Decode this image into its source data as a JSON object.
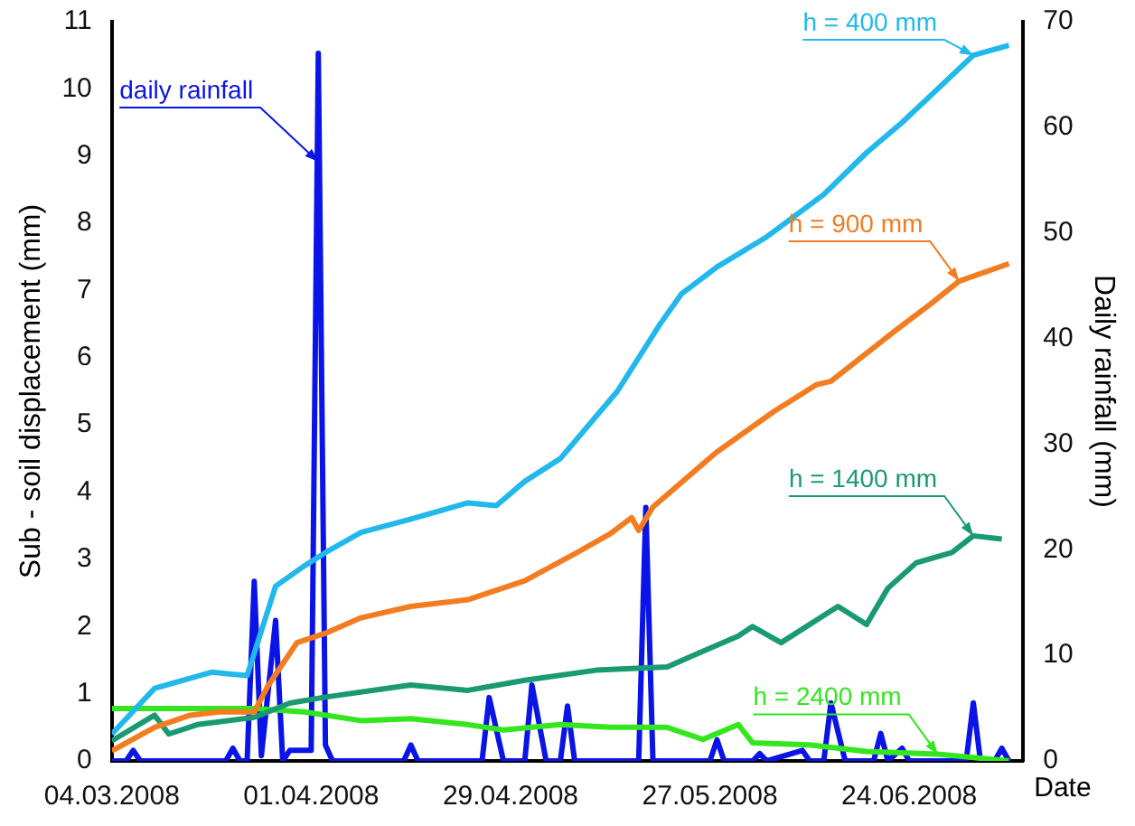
{
  "chart_data": {
    "type": "line",
    "xlabel": "Date",
    "ylabel": "Sub - soil displacement (mm)",
    "y2label": "Daily rainfall (mm)",
    "xlim": [
      "2008-03-04",
      "2008-07-10"
    ],
    "xticks": [
      {
        "value": "2008-03-04",
        "label": "04.03.2008"
      },
      {
        "value": "2008-04-01",
        "label": "01.04.2008"
      },
      {
        "value": "2008-04-29",
        "label": "29.04.2008"
      },
      {
        "value": "2008-05-27",
        "label": "27.05.2008"
      },
      {
        "value": "2008-06-24",
        "label": "24.06.2008"
      }
    ],
    "ylim": [
      0,
      11
    ],
    "yticks": [
      0,
      1,
      2,
      3,
      4,
      5,
      6,
      7,
      8,
      9,
      10,
      11
    ],
    "y2lim": [
      0,
      70
    ],
    "y2ticks": [
      0,
      10,
      20,
      30,
      40,
      50,
      60,
      70
    ],
    "grid": false,
    "legend": false,
    "marker": "none",
    "line_style": "solid",
    "series": [
      {
        "name": "h = 400 mm",
        "color": "#22b8ec",
        "x": [
          "2008-03-04",
          "2008-03-10",
          "2008-03-18",
          "2008-03-23",
          "2008-03-27",
          "2008-03-31",
          "2008-04-03",
          "2008-04-08",
          "2008-04-15",
          "2008-04-23",
          "2008-04-27",
          "2008-05-01",
          "2008-05-06",
          "2008-05-14",
          "2008-05-20",
          "2008-05-23",
          "2008-05-28",
          "2008-06-04",
          "2008-06-12",
          "2008-06-18",
          "2008-06-23",
          "2008-06-28",
          "2008-07-03",
          "2008-07-08"
        ],
        "values": [
          0.4,
          1.08,
          1.32,
          1.27,
          2.6,
          2.9,
          3.1,
          3.4,
          3.6,
          3.84,
          3.8,
          4.16,
          4.5,
          5.5,
          6.5,
          6.95,
          7.35,
          7.8,
          8.43,
          9.05,
          9.5,
          10.0,
          10.5,
          10.65
        ]
      },
      {
        "name": "h = 900 mm",
        "color": "#f47c20",
        "x": [
          "2008-03-04",
          "2008-03-10",
          "2008-03-15",
          "2008-03-19",
          "2008-03-24",
          "2008-03-26",
          "2008-03-30",
          "2008-04-03",
          "2008-04-08",
          "2008-04-15",
          "2008-04-23",
          "2008-05-01",
          "2008-05-08",
          "2008-05-13",
          "2008-05-16",
          "2008-05-17",
          "2008-05-19",
          "2008-05-28",
          "2008-06-05",
          "2008-06-11",
          "2008-06-13",
          "2008-06-22",
          "2008-06-27",
          "2008-07-01",
          "2008-07-08"
        ],
        "values": [
          0.15,
          0.5,
          0.68,
          0.73,
          0.73,
          1.13,
          1.76,
          1.9,
          2.13,
          2.3,
          2.4,
          2.68,
          3.08,
          3.38,
          3.62,
          3.43,
          3.78,
          4.6,
          5.2,
          5.6,
          5.65,
          6.4,
          6.8,
          7.14,
          7.4
        ]
      },
      {
        "name": "h = 1400 mm",
        "color": "#1a9a72",
        "x": [
          "2008-03-04",
          "2008-03-10",
          "2008-03-12",
          "2008-03-16",
          "2008-03-24",
          "2008-03-29",
          "2008-04-03",
          "2008-04-15",
          "2008-04-23",
          "2008-05-01",
          "2008-05-11",
          "2008-05-21",
          "2008-05-31",
          "2008-06-02",
          "2008-06-06",
          "2008-06-14",
          "2008-06-18",
          "2008-06-21",
          "2008-06-25",
          "2008-06-30",
          "2008-07-03",
          "2008-07-07"
        ],
        "values": [
          0.3,
          0.68,
          0.4,
          0.54,
          0.65,
          0.86,
          0.95,
          1.13,
          1.05,
          1.2,
          1.35,
          1.4,
          1.86,
          2.0,
          1.76,
          2.3,
          2.03,
          2.57,
          2.95,
          3.1,
          3.35,
          3.3
        ]
      },
      {
        "name": "h = 2400 mm",
        "color": "#33e61e",
        "x": [
          "2008-03-04",
          "2008-03-24",
          "2008-03-31",
          "2008-04-08",
          "2008-04-15",
          "2008-04-23",
          "2008-04-28",
          "2008-05-06",
          "2008-05-13",
          "2008-05-21",
          "2008-05-26",
          "2008-05-31",
          "2008-06-02",
          "2008-06-10",
          "2008-06-18",
          "2008-06-28",
          "2008-07-08"
        ],
        "values": [
          0.78,
          0.78,
          0.73,
          0.6,
          0.63,
          0.54,
          0.46,
          0.54,
          0.5,
          0.5,
          0.32,
          0.54,
          0.27,
          0.24,
          0.14,
          0.1,
          0
        ]
      },
      {
        "name": "daily rainfall",
        "color": "#0a14e6",
        "axis": "y2",
        "x": [
          "2008-03-04",
          "2008-03-06",
          "2008-03-07",
          "2008-03-08",
          "2008-03-20",
          "2008-03-21",
          "2008-03-22",
          "2008-03-23",
          "2008-03-24",
          "2008-03-25",
          "2008-03-27",
          "2008-03-28",
          "2008-03-29",
          "2008-03-31",
          "2008-04-01",
          "2008-04-02",
          "2008-04-03",
          "2008-04-04",
          "2008-04-14",
          "2008-04-15",
          "2008-04-16",
          "2008-04-25",
          "2008-04-26",
          "2008-04-28",
          "2008-05-01",
          "2008-05-02",
          "2008-05-04",
          "2008-05-06",
          "2008-05-07",
          "2008-05-08",
          "2008-05-17",
          "2008-05-18",
          "2008-05-19",
          "2008-05-27",
          "2008-05-28",
          "2008-05-29",
          "2008-06-02",
          "2008-06-03",
          "2008-06-04",
          "2008-06-09",
          "2008-06-10",
          "2008-06-12",
          "2008-06-13",
          "2008-06-15",
          "2008-06-19",
          "2008-06-20",
          "2008-06-21",
          "2008-06-23",
          "2008-06-24",
          "2008-07-02",
          "2008-07-03",
          "2008-07-04",
          "2008-07-06",
          "2008-07-07",
          "2008-07-08"
        ],
        "values": [
          0,
          0,
          1,
          0,
          0,
          1.2,
          0,
          0,
          17,
          0.5,
          13.3,
          0,
          1,
          1,
          1,
          67,
          1.5,
          0,
          0,
          1.5,
          0,
          0,
          6,
          0,
          0,
          7.2,
          0,
          0,
          5.2,
          0,
          0,
          24,
          0,
          0,
          2,
          0,
          0,
          0.7,
          0,
          1,
          0,
          0,
          5.5,
          0,
          0,
          2.6,
          0,
          1.2,
          0,
          0,
          5.5,
          0,
          0,
          1.2,
          0
        ]
      }
    ]
  }
}
